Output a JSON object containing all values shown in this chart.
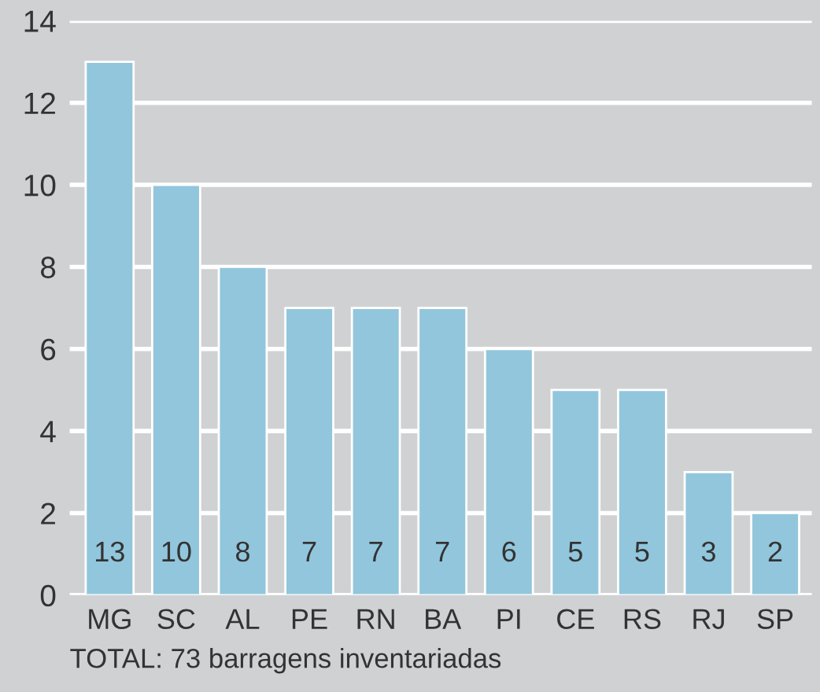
{
  "chart_data": {
    "type": "bar",
    "categories": [
      "MG",
      "SC",
      "AL",
      "PE",
      "RN",
      "BA",
      "PI",
      "CE",
      "RS",
      "RJ",
      "SP"
    ],
    "values": [
      13,
      10,
      8,
      7,
      7,
      7,
      6,
      5,
      5,
      3,
      2
    ],
    "color": "#92c6dc",
    "ylim": [
      0,
      14
    ],
    "yticks": [
      0,
      2,
      4,
      6,
      8,
      10,
      12,
      14
    ],
    "grid": "y",
    "data_labels": true,
    "annotations": [
      "TOTAL: 73 barragens inventariadas"
    ]
  }
}
